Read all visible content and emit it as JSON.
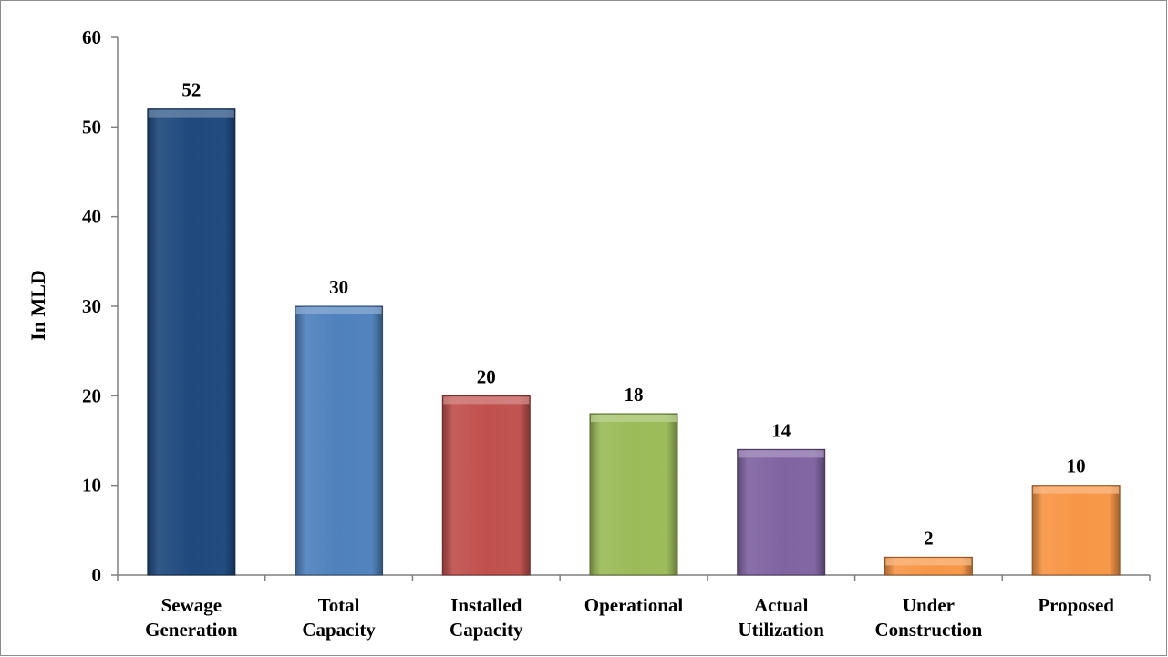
{
  "chart_data": {
    "type": "bar",
    "title": "",
    "xlabel": "",
    "ylabel": "In MLD",
    "ylim": [
      0,
      60
    ],
    "yticks": [
      0,
      10,
      20,
      30,
      40,
      50,
      60
    ],
    "grid": false,
    "legend": "none",
    "categories": [
      [
        "Sewage",
        "Generation"
      ],
      [
        "Total",
        "Capacity"
      ],
      [
        "Installed",
        "Capacity"
      ],
      [
        "Operational"
      ],
      [
        "Actual",
        "Utilization"
      ],
      [
        "Under",
        "Construction"
      ],
      [
        "Proposed"
      ]
    ],
    "values": [
      52,
      30,
      20,
      18,
      14,
      2,
      10
    ],
    "bar_colors": [
      "#1f497d",
      "#4f81bd",
      "#c0504d",
      "#9bbb59",
      "#8064a2",
      "#f79646",
      "#f79646"
    ]
  }
}
